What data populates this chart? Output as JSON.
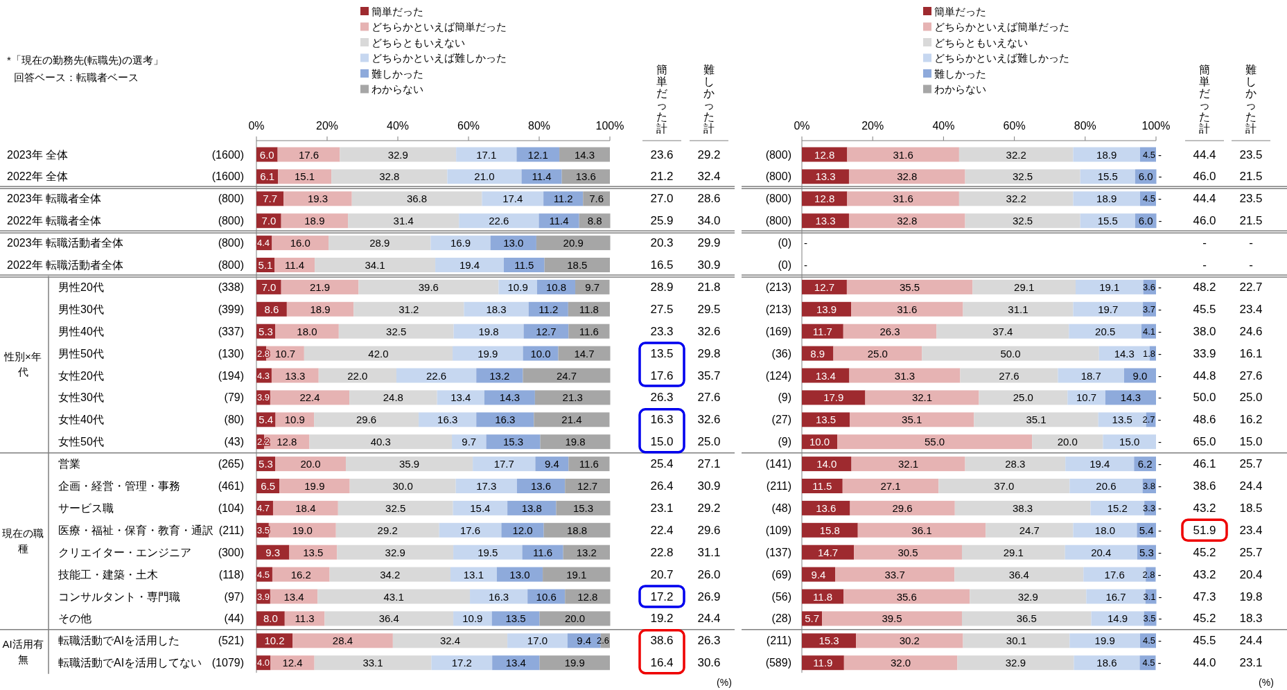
{
  "chart_data": [
    {
      "type": "other",
      "categories": [
        "2023年 全体",
        "2022年 全体",
        "2023年 転職者全体",
        "2022年 転職者全体",
        "2023年 転職活動者全体",
        "2022年 転職活動者全体",
        "男性20代",
        "男性30代",
        "男性40代",
        "男性50代",
        "女性20代",
        "女性30代",
        "女性40代",
        "女性50代",
        "営業",
        "企画・経営・管理・事務",
        "サービス職",
        "医療・福祉・保育・教育・通訳",
        "クリエイター・エンジニア",
        "技能工・建築・土木",
        "コンサルタント・専門職",
        "その他",
        "転職活動でAIを活用した",
        "転職活動でAIを活用してない"
      ],
      "annotations": [
        "*「現在の勤務先(転職先)の選考」",
        "回答ベース：転職者ベース",
        "性別×年代",
        "現在の職種",
        "AI活用有無"
      ]
    },
    {
      "type": "bar",
      "orientation": "horizontal",
      "stacked": true,
      "legend": "top",
      "xlim": [
        0,
        100
      ],
      "xticks": [
        {
          "value": 0,
          "label": "0%"
        },
        {
          "value": 20,
          "label": "20%"
        },
        {
          "value": 40,
          "label": "40%"
        },
        {
          "value": 60,
          "label": "60%"
        },
        {
          "value": 80,
          "label": "80%"
        },
        {
          "value": 100,
          "label": "100%"
        }
      ],
      "categories": [
        "(1600)",
        "(1600)",
        "(800)",
        "(800)",
        "(800)",
        "(800)",
        "(338)",
        "(399)",
        "(337)",
        "(130)",
        "(194)",
        "(79)",
        "(80)",
        "(43)",
        "(265)",
        "(461)",
        "(104)",
        "(211)",
        "(300)",
        "(118)",
        "(97)",
        "(44)",
        "(521)",
        "(1079)"
      ],
      "series": [
        {
          "name": "簡単だった",
          "color": "#9e2a2f",
          "values": [
            6.0,
            6.1,
            7.7,
            7.0,
            4.4,
            5.1,
            7.0,
            8.6,
            5.3,
            2.8,
            4.3,
            3.9,
            5.4,
            2.2,
            5.3,
            6.5,
            4.7,
            3.5,
            9.3,
            4.5,
            3.9,
            8.0,
            10.2,
            4.0
          ],
          "value_labels": [
            "6.0",
            "6.1",
            "7.7",
            "7.0",
            "4.4",
            "5.1",
            "7.0",
            "8.6",
            "5.3",
            "2.8",
            "4.3",
            "3.9",
            "5.4",
            "2.2",
            "5.3",
            "6.5",
            "4.7",
            "3.5",
            "9.3",
            "4.5",
            "3.9",
            "8.0",
            "10.2",
            "4.0"
          ]
        },
        {
          "name": "どちらかといえば簡単だった",
          "color": "#e6b3b3",
          "values": [
            17.6,
            15.1,
            19.3,
            18.9,
            16.0,
            11.4,
            21.9,
            18.9,
            18.0,
            10.7,
            13.3,
            22.4,
            10.9,
            12.8,
            20.0,
            19.9,
            18.4,
            19.0,
            13.5,
            16.2,
            13.4,
            11.3,
            28.4,
            12.4
          ],
          "value_labels": [
            "17.6",
            "15.1",
            "19.3",
            "18.9",
            "16.0",
            "11.4",
            "21.9",
            "18.9",
            "18.0",
            "10.7",
            "13.3",
            "22.4",
            "10.9",
            "12.8",
            "20.0",
            "19.9",
            "18.4",
            "19.0",
            "13.5",
            "16.2",
            "13.4",
            "11.3",
            "28.4",
            "12.4"
          ]
        },
        {
          "name": "どちらともいえない",
          "color": "#d9d9d9",
          "values": [
            32.9,
            32.8,
            36.8,
            31.4,
            28.9,
            34.1,
            39.6,
            31.2,
            32.5,
            42.0,
            22.0,
            24.8,
            29.6,
            40.3,
            35.9,
            30.0,
            32.5,
            29.2,
            32.9,
            34.2,
            43.1,
            36.4,
            32.4,
            33.1
          ],
          "value_labels": [
            "32.9",
            "32.8",
            "36.8",
            "31.4",
            "28.9",
            "34.1",
            "39.6",
            "31.2",
            "32.5",
            "42.0",
            "22.0",
            "24.8",
            "29.6",
            "40.3",
            "35.9",
            "30.0",
            "32.5",
            "29.2",
            "32.9",
            "34.2",
            "43.1",
            "36.4",
            "32.4",
            "33.1"
          ]
        },
        {
          "name": "どちらかといえば難しかった",
          "color": "#c6d7f0",
          "values": [
            17.1,
            21.0,
            17.4,
            22.6,
            16.9,
            19.4,
            10.9,
            18.3,
            19.8,
            19.9,
            22.6,
            13.4,
            16.3,
            9.7,
            17.7,
            17.3,
            15.4,
            17.6,
            19.5,
            13.1,
            16.3,
            10.9,
            17.0,
            17.2
          ],
          "value_labels": [
            "17.1",
            "21.0",
            "17.4",
            "22.6",
            "16.9",
            "19.4",
            "10.9",
            "18.3",
            "19.8",
            "19.9",
            "22.6",
            "13.4",
            "16.3",
            "9.7",
            "17.7",
            "17.3",
            "15.4",
            "17.6",
            "19.5",
            "13.1",
            "16.3",
            "10.9",
            "17.0",
            "17.2"
          ]
        },
        {
          "name": "難しかった",
          "color": "#8eaadb",
          "values": [
            12.1,
            11.4,
            11.2,
            11.4,
            13.0,
            11.5,
            10.8,
            11.2,
            12.7,
            10.0,
            13.2,
            14.3,
            16.3,
            15.3,
            9.4,
            13.6,
            13.8,
            12.0,
            11.6,
            13.0,
            10.6,
            13.5,
            9.4,
            13.4
          ],
          "value_labels": [
            "12.1",
            "11.4",
            "11.2",
            "11.4",
            "13.0",
            "11.5",
            "10.8",
            "11.2",
            "12.7",
            "10.0",
            "13.2",
            "14.3",
            "16.3",
            "15.3",
            "9.4",
            "13.6",
            "13.8",
            "12.0",
            "11.6",
            "13.0",
            "10.6",
            "13.5",
            "9.4",
            "13.4"
          ]
        },
        {
          "name": "わからない",
          "color": "#a6a6a6",
          "values": [
            14.3,
            13.6,
            7.6,
            8.8,
            20.9,
            18.5,
            9.7,
            11.8,
            11.6,
            14.7,
            24.7,
            21.3,
            21.4,
            19.8,
            11.6,
            12.7,
            15.3,
            18.8,
            13.2,
            19.1,
            12.8,
            20.0,
            2.6,
            19.9
          ],
          "value_labels": [
            "14.3",
            "13.6",
            "7.6",
            "8.8",
            "20.9",
            "18.5",
            "9.7",
            "11.8",
            "11.6",
            "14.7",
            "24.7",
            "21.3",
            "21.4",
            "19.8",
            "11.6",
            "12.7",
            "15.3",
            "18.8",
            "13.2",
            "19.1",
            "12.8",
            "20.0",
            "2.6",
            "19.9"
          ]
        }
      ]
    },
    {
      "type": "other",
      "title": "簡単だった計",
      "value_labels": [
        "23.6",
        "21.2",
        "27.0",
        "25.9",
        "20.3",
        "16.5",
        "28.9",
        "27.5",
        "23.3",
        "13.5",
        "17.6",
        "26.3",
        "16.3",
        "15.0",
        "25.4",
        "26.4",
        "23.1",
        "22.4",
        "22.8",
        "20.7",
        "17.2",
        "19.2",
        "38.6",
        "16.4"
      ]
    },
    {
      "type": "other",
      "title": "難しかった計",
      "annotations": [
        "(%)"
      ],
      "value_labels": [
        "29.2",
        "32.4",
        "28.6",
        "34.0",
        "29.9",
        "30.9",
        "21.8",
        "29.5",
        "32.6",
        "29.8",
        "35.7",
        "27.6",
        "32.6",
        "25.0",
        "27.1",
        "30.9",
        "29.2",
        "29.6",
        "31.1",
        "26.0",
        "26.9",
        "24.4",
        "26.3",
        "30.6"
      ]
    },
    {
      "type": "bar",
      "orientation": "horizontal",
      "stacked": true,
      "legend": "top",
      "xlim": [
        0,
        100
      ],
      "xticks": [
        {
          "value": 0,
          "label": "0%"
        },
        {
          "value": 20,
          "label": "20%"
        },
        {
          "value": 40,
          "label": "40%"
        },
        {
          "value": 60,
          "label": "60%"
        },
        {
          "value": 80,
          "label": "80%"
        },
        {
          "value": 100,
          "label": "100%"
        }
      ],
      "categories": [
        "(800)",
        "(800)",
        "(800)",
        "(800)",
        "(0)",
        "(0)",
        "(213)",
        "(213)",
        "(169)",
        "(36)",
        "(124)",
        "(9)",
        "(27)",
        "(9)",
        "(141)",
        "(211)",
        "(48)",
        "(109)",
        "(137)",
        "(69)",
        "(56)",
        "(28)",
        "(211)",
        "(589)"
      ],
      "series": [
        {
          "name": "簡単だった",
          "color": "#9e2a2f",
          "values": [
            12.8,
            13.3,
            12.8,
            13.3,
            null,
            null,
            12.7,
            13.9,
            11.7,
            8.9,
            13.4,
            17.9,
            13.5,
            10.0,
            14.0,
            11.5,
            13.6,
            15.8,
            14.7,
            9.4,
            11.8,
            5.7,
            15.3,
            11.9
          ],
          "value_labels": [
            "12.8",
            "13.3",
            "12.8",
            "13.3",
            null,
            null,
            "12.7",
            "13.9",
            "11.7",
            "8.9",
            "13.4",
            "17.9",
            "13.5",
            "10.0",
            "14.0",
            "11.5",
            "13.6",
            "15.8",
            "14.7",
            "9.4",
            "11.8",
            "5.7",
            "15.3",
            "11.9"
          ]
        },
        {
          "name": "どちらかといえば簡単だった",
          "color": "#e6b3b3",
          "values": [
            31.6,
            32.8,
            31.6,
            32.8,
            null,
            null,
            35.5,
            31.6,
            26.3,
            25.0,
            31.3,
            32.1,
            35.1,
            55.0,
            32.1,
            27.1,
            29.6,
            36.1,
            30.5,
            33.7,
            35.6,
            39.5,
            30.2,
            32.0
          ],
          "value_labels": [
            "31.6",
            "32.8",
            "31.6",
            "32.8",
            null,
            null,
            "35.5",
            "31.6",
            "26.3",
            "25.0",
            "31.3",
            "32.1",
            "35.1",
            "55.0",
            "32.1",
            "27.1",
            "29.6",
            "36.1",
            "30.5",
            "33.7",
            "35.6",
            "39.5",
            "30.2",
            "32.0"
          ]
        },
        {
          "name": "どちらともいえない",
          "color": "#d9d9d9",
          "values": [
            32.2,
            32.5,
            32.2,
            32.5,
            null,
            null,
            29.1,
            31.1,
            37.4,
            50.0,
            27.6,
            25.0,
            35.1,
            20.0,
            28.3,
            37.0,
            38.3,
            24.7,
            29.1,
            36.4,
            32.9,
            36.5,
            30.1,
            32.9
          ],
          "value_labels": [
            "32.2",
            "32.5",
            "32.2",
            "32.5",
            null,
            null,
            "29.1",
            "31.1",
            "37.4",
            "50.0",
            "27.6",
            "25.0",
            "35.1",
            "20.0",
            "28.3",
            "37.0",
            "38.3",
            "24.7",
            "29.1",
            "36.4",
            "32.9",
            "36.5",
            "30.1",
            "32.9"
          ]
        },
        {
          "name": "どちらかといえば難しかった",
          "color": "#c6d7f0",
          "values": [
            18.9,
            15.5,
            18.9,
            15.5,
            null,
            null,
            19.1,
            19.7,
            20.5,
            14.3,
            18.7,
            10.7,
            13.5,
            15.0,
            19.4,
            20.6,
            15.2,
            18.0,
            20.4,
            17.6,
            16.7,
            14.9,
            19.9,
            18.6
          ],
          "value_labels": [
            "18.9",
            "15.5",
            "18.9",
            "15.5",
            null,
            null,
            "19.1",
            "19.7",
            "20.5",
            "14.3",
            "18.7",
            "10.7",
            "13.5",
            "15.0",
            "19.4",
            "20.6",
            "15.2",
            "18.0",
            "20.4",
            "17.6",
            "16.7",
            "14.9",
            "19.9",
            "18.6"
          ]
        },
        {
          "name": "難しかった",
          "color": "#8eaadb",
          "values": [
            4.5,
            6.0,
            4.5,
            6.0,
            null,
            null,
            3.6,
            3.7,
            4.1,
            1.8,
            9.0,
            14.3,
            2.7,
            0,
            6.2,
            3.8,
            3.3,
            5.4,
            5.3,
            2.8,
            3.1,
            3.5,
            4.5,
            4.5
          ],
          "value_labels": [
            "4.5",
            "6.0",
            "4.5",
            "6.0",
            null,
            null,
            "3.6",
            "3.7",
            "4.1",
            "1.8",
            "9.0",
            "14.3",
            "2.7",
            null,
            "6.2",
            "3.8",
            "3.3",
            "5.4",
            "5.3",
            "2.8",
            "3.1",
            "3.5",
            "4.5",
            "4.5"
          ]
        },
        {
          "name": "わからない",
          "color": "#a6a6a6",
          "values": [
            0,
            0,
            0,
            0,
            null,
            null,
            0,
            0,
            0,
            0,
            0,
            0,
            0,
            0,
            0,
            0,
            0,
            0,
            0,
            0,
            0,
            0,
            0,
            0
          ],
          "value_labels": [
            "-",
            "-",
            "-",
            "-",
            "-",
            "-",
            "-",
            "-",
            "-",
            "-",
            "-",
            "-",
            "-",
            "-",
            "-",
            "-",
            "-",
            "-",
            "-",
            "-",
            "-",
            "-",
            "-",
            "-"
          ]
        }
      ]
    },
    {
      "type": "other",
      "title": "簡単だった計",
      "value_labels": [
        "44.4",
        "46.0",
        "44.4",
        "46.0",
        "-",
        "-",
        "48.2",
        "45.5",
        "38.0",
        "33.9",
        "44.8",
        "50.0",
        "48.6",
        "65.0",
        "46.1",
        "38.6",
        "43.2",
        "51.9",
        "45.2",
        "43.2",
        "47.3",
        "45.2",
        "45.5",
        "44.0"
      ]
    },
    {
      "type": "other",
      "title": "難しかった計",
      "annotations": [
        "(%)"
      ],
      "value_labels": [
        "23.5",
        "21.5",
        "23.5",
        "21.5",
        "-",
        "-",
        "22.7",
        "23.4",
        "24.6",
        "16.1",
        "27.6",
        "25.0",
        "16.2",
        "15.0",
        "25.7",
        "24.4",
        "18.5",
        "23.4",
        "25.7",
        "20.4",
        "19.8",
        "18.3",
        "24.4",
        "23.1"
      ]
    }
  ]
}
